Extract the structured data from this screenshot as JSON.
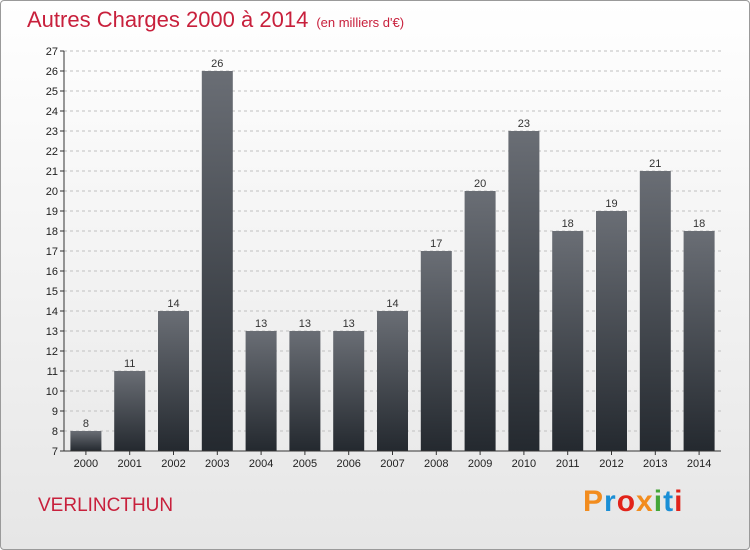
{
  "header": {
    "title": "Autres Charges 2000 à 2014",
    "subtitle": "(en milliers d'€)"
  },
  "footer": {
    "commune": "VERLINCTHUN",
    "brand": "Proxiti"
  },
  "colors": {
    "title": "#c8203c",
    "bar_top": "#6a6e75",
    "bar_bottom": "#24292f",
    "grid": "#c0c0c0",
    "brand_letters": [
      "#f28c1e",
      "#1a8fd6",
      "#e2231a",
      "#f28c1e",
      "#43a638",
      "#1a8fd6",
      "#e2231a"
    ]
  },
  "chart_data": {
    "type": "bar",
    "categories": [
      "2000",
      "2001",
      "2002",
      "2003",
      "2004",
      "2005",
      "2006",
      "2007",
      "2008",
      "2009",
      "2010",
      "2011",
      "2012",
      "2013",
      "2014"
    ],
    "values": [
      8,
      11,
      14,
      26,
      13,
      13,
      13,
      14,
      17,
      20,
      23,
      18,
      19,
      21,
      18
    ],
    "title": "Autres Charges 2000 à 2014",
    "ylim": [
      7,
      27
    ],
    "yticks": [
      7,
      8,
      9,
      10,
      11,
      12,
      13,
      14,
      15,
      16,
      17,
      18,
      19,
      20,
      21,
      22,
      23,
      24,
      25,
      26,
      27
    ],
    "grid": "horizontal",
    "data_labels": true
  }
}
